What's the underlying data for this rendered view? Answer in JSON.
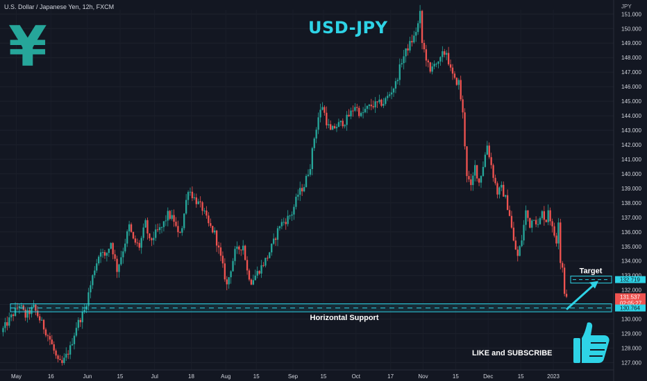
{
  "header": {
    "symbol": "U.S. Dollar / Japanese Yen, 12h, FXCM",
    "title": "USD-JPY",
    "logo_glyph": "¥",
    "axis_unit": "JPY"
  },
  "colors": {
    "background": "#131722",
    "up": "#26a69a",
    "down": "#ef5350",
    "accent": "#2ed3e6",
    "axis_text": "#b2b5be"
  },
  "annotations": {
    "support_label": "Horizontal Support",
    "support_low": 130.5,
    "support_high": 131.05,
    "support_level": 130.764,
    "target_label": "Target",
    "target_level": 132.719,
    "cta_text": "LIKE and SUBSCRIBE",
    "thumbs_icon": "thumbs-up-icon"
  },
  "price_badges": [
    {
      "label": "132.719",
      "value": 132.719,
      "kind": "target"
    },
    {
      "label": "131.537",
      "value": 131.537,
      "kind": "last",
      "sub": "02:05:27"
    },
    {
      "label": "130.764",
      "value": 130.764,
      "kind": "support"
    }
  ],
  "chart_data": {
    "type": "candlestick",
    "ylim": [
      126.5,
      151.3
    ],
    "yticks": [
      127,
      128,
      129,
      130,
      131,
      132,
      133,
      134,
      135,
      136,
      137,
      138,
      139,
      140,
      141,
      142,
      143,
      144,
      145,
      146,
      147,
      148,
      149,
      150,
      151
    ],
    "ytick_labels": [
      "127.000",
      "128.000",
      "129.000",
      "130.000",
      "131.000",
      "132.000",
      "133.000",
      "134.000",
      "135.000",
      "136.000",
      "137.000",
      "138.000",
      "139.000",
      "140.000",
      "141.000",
      "142.000",
      "143.000",
      "144.000",
      "145.000",
      "146.000",
      "147.000",
      "148.000",
      "149.000",
      "150.000",
      "151.000"
    ],
    "xlabels": [
      "May",
      "16",
      "Jun",
      "15",
      "Jul",
      "18",
      "Aug",
      "15",
      "Sep",
      "15",
      "Oct",
      "17",
      "Nov",
      "15",
      "Dec",
      "15",
      "2023"
    ],
    "xlabel_bars": [
      7,
      24,
      42,
      58,
      75,
      93,
      110,
      125,
      143,
      158,
      174,
      191,
      207,
      223,
      239,
      255,
      271
    ],
    "bars_total": 284,
    "close_path": [
      [
        0,
        129.3
      ],
      [
        8,
        131.0
      ],
      [
        11,
        130.2
      ],
      [
        15,
        130.8
      ],
      [
        19,
        129.7
      ],
      [
        23,
        128.6
      ],
      [
        27,
        127.0
      ],
      [
        29,
        126.9
      ],
      [
        33,
        128.0
      ],
      [
        36,
        129.5
      ],
      [
        40,
        130.6
      ],
      [
        45,
        133.5
      ],
      [
        48,
        134.8
      ],
      [
        50,
        134.2
      ],
      [
        53,
        135.3
      ],
      [
        56,
        133.4
      ],
      [
        59,
        134.8
      ],
      [
        62,
        136.4
      ],
      [
        64,
        135.4
      ],
      [
        67,
        135.0
      ],
      [
        70,
        136.6
      ],
      [
        72,
        135.3
      ],
      [
        75,
        135.9
      ],
      [
        78,
        136.3
      ],
      [
        81,
        137.2
      ],
      [
        84,
        136.8
      ],
      [
        86,
        135.8
      ],
      [
        88,
        136.4
      ],
      [
        91,
        139.0
      ],
      [
        94,
        138.3
      ],
      [
        98,
        137.6
      ],
      [
        101,
        136.5
      ],
      [
        104,
        135.9
      ],
      [
        107,
        134.2
      ],
      [
        110,
        132.3
      ],
      [
        112,
        133.5
      ],
      [
        114,
        134.6
      ],
      [
        118,
        135.1
      ],
      [
        120,
        133.3
      ],
      [
        122,
        132.6
      ],
      [
        124,
        133.0
      ],
      [
        127,
        133.6
      ],
      [
        130,
        134.3
      ],
      [
        133,
        135.3
      ],
      [
        136,
        136.5
      ],
      [
        139,
        136.8
      ],
      [
        142,
        137.3
      ],
      [
        145,
        138.6
      ],
      [
        148,
        139.2
      ],
      [
        151,
        140.6
      ],
      [
        153,
        142.5
      ],
      [
        155,
        143.9
      ],
      [
        157,
        144.7
      ],
      [
        159,
        143.6
      ],
      [
        161,
        142.9
      ],
      [
        163,
        143.2
      ],
      [
        165,
        143.4
      ],
      [
        168,
        143.6
      ],
      [
        171,
        144.2
      ],
      [
        173,
        144.7
      ],
      [
        176,
        144.0
      ],
      [
        178,
        144.4
      ],
      [
        181,
        144.7
      ],
      [
        184,
        144.8
      ],
      [
        187,
        144.9
      ],
      [
        190,
        145.5
      ],
      [
        193,
        146.2
      ],
      [
        196,
        147.8
      ],
      [
        199,
        148.7
      ],
      [
        202,
        149.4
      ],
      [
        204,
        150.3
      ],
      [
        205,
        151.0
      ],
      [
        206,
        149.0
      ],
      [
        208,
        148.0
      ],
      [
        210,
        146.9
      ],
      [
        212,
        147.8
      ],
      [
        214,
        147.5
      ],
      [
        216,
        148.2
      ],
      [
        218,
        148.4
      ],
      [
        220,
        147.1
      ],
      [
        222,
        146.4
      ],
      [
        224,
        146.3
      ],
      [
        226,
        144.1
      ],
      [
        228,
        140.0
      ],
      [
        230,
        139.0
      ],
      [
        232,
        140.5
      ],
      [
        234,
        139.4
      ],
      [
        236,
        140.6
      ],
      [
        238,
        142.0
      ],
      [
        239,
        141.3
      ],
      [
        241,
        139.9
      ],
      [
        243,
        138.7
      ],
      [
        245,
        139.0
      ],
      [
        247,
        138.3
      ],
      [
        249,
        137.2
      ],
      [
        251,
        135.3
      ],
      [
        253,
        134.3
      ],
      [
        255,
        135.5
      ],
      [
        257,
        137.4
      ],
      [
        259,
        136.5
      ],
      [
        261,
        137.1
      ],
      [
        263,
        136.4
      ],
      [
        265,
        137.3
      ],
      [
        267,
        136.8
      ],
      [
        268,
        137.6
      ],
      [
        270,
        136.2
      ],
      [
        272,
        135.4
      ],
      [
        273,
        136.9
      ],
      [
        274,
        134.0
      ],
      [
        275,
        133.6
      ],
      [
        276,
        131.9
      ],
      [
        277,
        131.537
      ]
    ],
    "annotations": [
      {
        "text": "Horizontal Support",
        "value": 130.764
      },
      {
        "text": "Target",
        "value": 132.719
      }
    ]
  }
}
